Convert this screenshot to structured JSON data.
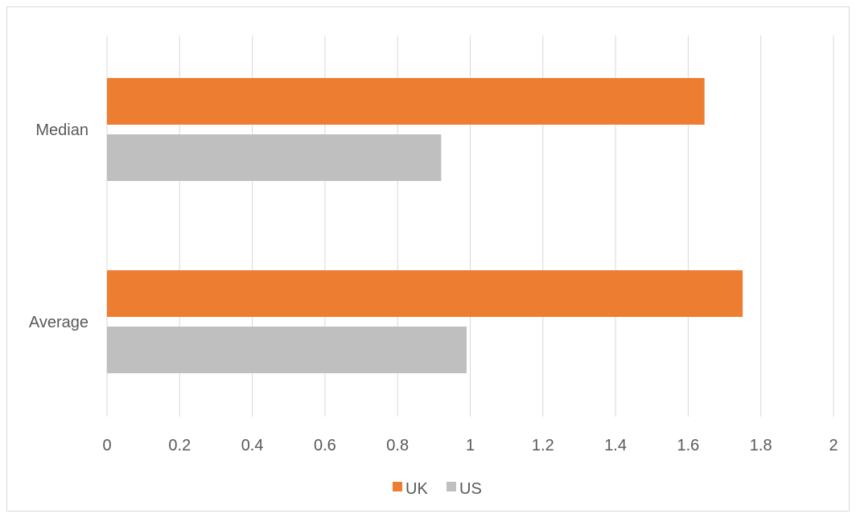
{
  "chart_data": {
    "type": "bar",
    "orientation": "horizontal",
    "categories": [
      "Median",
      "Average"
    ],
    "series": [
      {
        "name": "UK",
        "values": [
          1.645,
          1.75
        ]
      },
      {
        "name": "US",
        "values": [
          0.92,
          0.99
        ]
      }
    ],
    "xlim": [
      0,
      2
    ],
    "xticks": [
      "0",
      "0.2",
      "0.4",
      "0.6",
      "0.8",
      "1",
      "1.2",
      "1.4",
      "1.6",
      "1.8",
      "2"
    ],
    "tick_values": [
      0,
      0.2,
      0.4,
      0.6,
      0.8,
      1,
      1.2,
      1.4,
      1.6,
      1.8,
      2
    ],
    "grid": true,
    "legend_position": "bottom",
    "colors": {
      "UK": "#ed7d31",
      "US": "#bfbfbf",
      "grid": "#d9d9d9"
    }
  }
}
